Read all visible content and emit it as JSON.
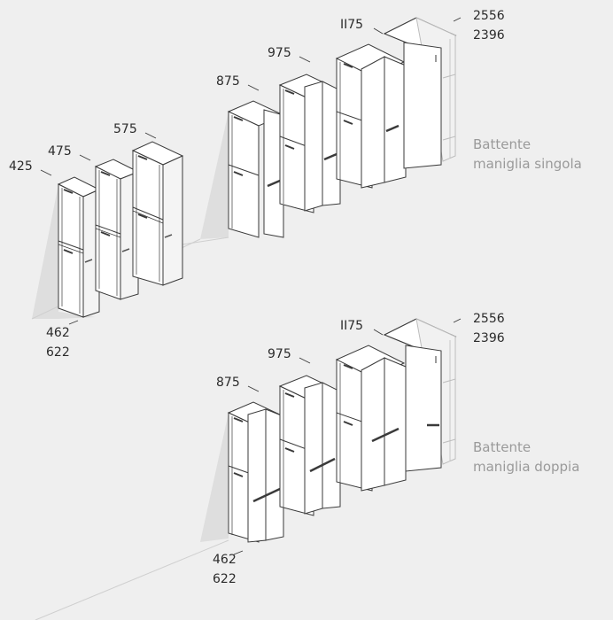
{
  "colors": {
    "background": "#efefef",
    "shadow": "#dcdcdc",
    "outline": "#3a3a3a",
    "panel_white": "#ffffff",
    "panel_side": "#ececec",
    "label": "#2b2b2b",
    "caption": "#9a9a9a"
  },
  "top_group": {
    "widths": {
      "w425": "425",
      "w475": "475",
      "w575": "575",
      "w875": "875",
      "w975": "975",
      "w1175": "II75"
    },
    "depths": [
      "462",
      "622"
    ],
    "heights": [
      "2556",
      "2396"
    ],
    "caption": [
      "Battente",
      "maniglia singola"
    ]
  },
  "bottom_group": {
    "widths": {
      "w875": "875",
      "w975": "975",
      "w1175": "II75"
    },
    "depths": [
      "462",
      "622"
    ],
    "heights": [
      "2556",
      "2396"
    ],
    "caption": [
      "Battente",
      "maniglia doppia"
    ]
  }
}
